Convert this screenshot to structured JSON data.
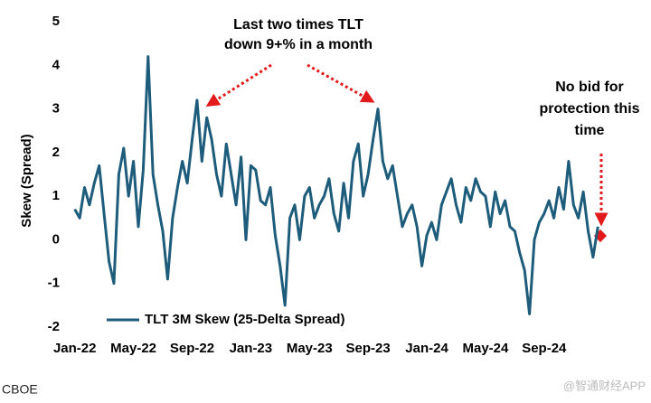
{
  "chart_data": {
    "type": "line",
    "y_label": "Skew (Spread)",
    "categories": [
      "Jan-22",
      null,
      null,
      null,
      null,
      null,
      null,
      null,
      null,
      null,
      null,
      null,
      "May-22",
      null,
      null,
      null,
      null,
      null,
      null,
      null,
      null,
      null,
      null,
      null,
      "Sep-22",
      null,
      null,
      null,
      null,
      null,
      null,
      null,
      null,
      null,
      null,
      null,
      "Jan-23",
      null,
      null,
      null,
      null,
      null,
      null,
      null,
      null,
      null,
      null,
      null,
      "May-23",
      null,
      null,
      null,
      null,
      null,
      null,
      null,
      null,
      null,
      null,
      null,
      "Sep-23",
      null,
      null,
      null,
      null,
      null,
      null,
      null,
      null,
      null,
      null,
      null,
      "Jan-24",
      null,
      null,
      null,
      null,
      null,
      null,
      null,
      null,
      null,
      null,
      null,
      "May-24",
      null,
      null,
      null,
      null,
      null,
      null,
      null,
      null,
      null,
      null,
      null,
      "Sep-24",
      null,
      null,
      null,
      null,
      null,
      null,
      null,
      null,
      null,
      null,
      null
    ],
    "series": [
      {
        "name": "TLT 3M Skew (25-Delta Spread)",
        "color": "#1d5c7a",
        "values": [
          0.7,
          0.5,
          1.2,
          0.8,
          1.3,
          1.7,
          0.6,
          -0.5,
          -1.0,
          1.5,
          2.1,
          1.0,
          1.8,
          0.3,
          1.6,
          4.2,
          1.5,
          0.8,
          0.2,
          -0.9,
          0.5,
          1.2,
          1.8,
          1.3,
          2.3,
          3.2,
          1.8,
          2.8,
          2.3,
          1.5,
          1.0,
          2.2,
          1.5,
          0.8,
          1.9,
          0.0,
          1.7,
          1.6,
          0.9,
          0.8,
          1.2,
          0.1,
          -0.6,
          -1.5,
          0.5,
          0.8,
          0.0,
          1.0,
          1.2,
          0.5,
          0.8,
          1.0,
          1.4,
          0.6,
          0.2,
          1.3,
          0.5,
          1.8,
          2.2,
          1.0,
          1.5,
          2.3,
          3.0,
          1.8,
          1.4,
          1.7,
          1.0,
          0.3,
          0.6,
          0.8,
          0.3,
          -0.6,
          0.1,
          0.4,
          0.0,
          0.8,
          1.1,
          1.4,
          0.8,
          0.4,
          1.2,
          0.9,
          1.4,
          1.1,
          1.0,
          0.3,
          1.1,
          0.6,
          0.9,
          0.3,
          0.2,
          -0.3,
          -0.7,
          -1.7,
          0.0,
          0.4,
          0.6,
          0.9,
          0.5,
          1.2,
          0.7,
          1.8,
          0.8,
          0.5,
          1.1,
          0.2,
          -0.4,
          0.3
        ]
      }
    ],
    "ylim": [
      -2,
      5
    ],
    "yticks": [
      -2,
      -1,
      0,
      1,
      2,
      3,
      4,
      5
    ],
    "grid": false,
    "legend": "lower left",
    "annotations": [
      {
        "lines": [
          "Last two times TLT",
          "down 9+% in a month"
        ]
      },
      {
        "lines": [
          "No bid for",
          "protection this",
          "time"
        ]
      }
    ],
    "source": "CBOE",
    "watermark": "@智通财经APP"
  }
}
